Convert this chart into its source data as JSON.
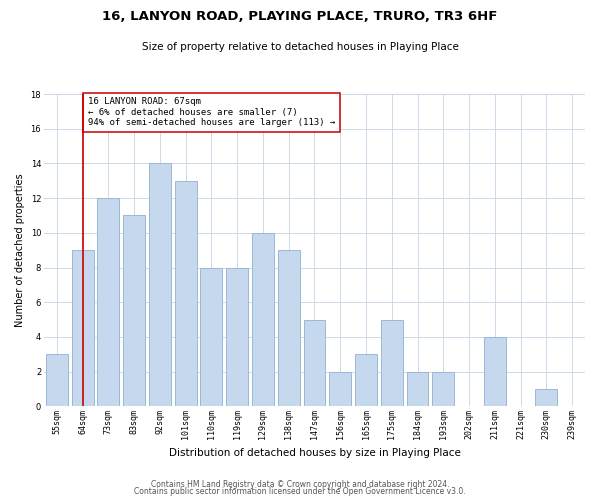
{
  "title": "16, LANYON ROAD, PLAYING PLACE, TRURO, TR3 6HF",
  "subtitle": "Size of property relative to detached houses in Playing Place",
  "xlabel": "Distribution of detached houses by size in Playing Place",
  "ylabel": "Number of detached properties",
  "bar_labels": [
    "55sqm",
    "64sqm",
    "73sqm",
    "83sqm",
    "92sqm",
    "101sqm",
    "110sqm",
    "119sqm",
    "129sqm",
    "138sqm",
    "147sqm",
    "156sqm",
    "165sqm",
    "175sqm",
    "184sqm",
    "193sqm",
    "202sqm",
    "211sqm",
    "221sqm",
    "230sqm",
    "239sqm"
  ],
  "bar_values": [
    3,
    9,
    12,
    11,
    14,
    13,
    8,
    8,
    10,
    9,
    5,
    2,
    3,
    5,
    2,
    2,
    0,
    4,
    0,
    1,
    0
  ],
  "bar_color": "#c5d8ed",
  "bar_edge_color": "#9ab8d4",
  "vline_x": 1,
  "vline_color": "#cc0000",
  "annotation_text": "16 LANYON ROAD: 67sqm\n← 6% of detached houses are smaller (7)\n94% of semi-detached houses are larger (113) →",
  "annotation_box_color": "#ffffff",
  "annotation_box_edge": "#cc0000",
  "ylim": [
    0,
    18
  ],
  "yticks": [
    0,
    2,
    4,
    6,
    8,
    10,
    12,
    14,
    16,
    18
  ],
  "footer1": "Contains HM Land Registry data © Crown copyright and database right 2024.",
  "footer2": "Contains public sector information licensed under the Open Government Licence v3.0.",
  "bg_color": "#ffffff",
  "grid_color": "#ccd9e8",
  "title_fontsize": 9.5,
  "subtitle_fontsize": 7.5,
  "ylabel_fontsize": 7,
  "xlabel_fontsize": 7.5,
  "tick_fontsize": 6,
  "annotation_fontsize": 6.5,
  "footer_fontsize": 5.5
}
